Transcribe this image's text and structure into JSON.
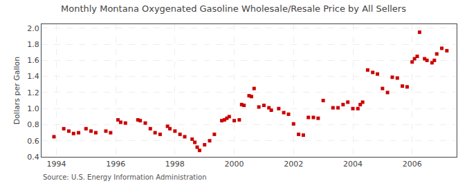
{
  "chart_data": {
    "type": "scatter",
    "title": "Monthly Montana Oxygenated Gasoline Wholesale/Resale Price by All Sellers",
    "ylabel": "Dollars per Gallon",
    "annotations": [
      "Source: U.S. Energy Information Administration"
    ],
    "color": "#CC0000",
    "marker": "square",
    "grid": true,
    "xlim": [
      1993.5,
      2007.5
    ],
    "ylim": [
      0.4,
      2.05
    ],
    "xticks": [
      1994,
      1996,
      1998,
      2000,
      2002,
      2004,
      2006
    ],
    "yticks": [
      0.4,
      0.6,
      0.8,
      {
        "value": 1.0,
        "label": "1.0"
      },
      1.2,
      1.4,
      1.6,
      1.8,
      {
        "value": 2.0,
        "label": "2.0"
      }
    ],
    "x": [
      1993.92,
      1994.25,
      1994.42,
      1994.58,
      1994.75,
      1995.0,
      1995.17,
      1995.33,
      1995.67,
      1995.83,
      1996.08,
      1996.17,
      1996.33,
      1996.75,
      1996.83,
      1997.0,
      1997.17,
      1997.33,
      1997.5,
      1997.75,
      1997.83,
      1998.0,
      1998.17,
      1998.33,
      1998.58,
      1998.67,
      1998.75,
      1998.83,
      1999.0,
      1999.17,
      1999.33,
      1999.58,
      1999.67,
      1999.75,
      1999.83,
      2000.0,
      2000.17,
      2000.25,
      2000.33,
      2000.5,
      2000.58,
      2000.67,
      2000.83,
      2001.0,
      2001.17,
      2001.25,
      2001.5,
      2001.67,
      2001.83,
      2002.0,
      2002.17,
      2002.33,
      2002.5,
      2002.67,
      2002.83,
      2003.0,
      2003.33,
      2003.5,
      2003.67,
      2003.83,
      2004.0,
      2004.17,
      2004.25,
      2004.33,
      2004.5,
      2004.67,
      2004.83,
      2005.0,
      2005.17,
      2005.33,
      2005.5,
      2005.67,
      2005.83,
      2006.0,
      2006.08,
      2006.17,
      2006.25,
      2006.42,
      2006.5,
      2006.67,
      2006.75,
      2006.83,
      2007.0,
      2007.17
    ],
    "values": [
      0.65,
      0.75,
      0.72,
      0.69,
      0.7,
      0.75,
      0.72,
      0.7,
      0.72,
      0.7,
      0.86,
      0.83,
      0.82,
      0.86,
      0.85,
      0.82,
      0.75,
      0.7,
      0.68,
      0.78,
      0.75,
      0.72,
      0.68,
      0.65,
      0.62,
      0.58,
      0.52,
      0.48,
      0.55,
      0.6,
      0.68,
      0.85,
      0.86,
      0.88,
      0.9,
      0.85,
      0.86,
      1.05,
      1.04,
      1.16,
      1.15,
      1.25,
      1.02,
      1.04,
      1.01,
      0.98,
      1.0,
      0.95,
      0.93,
      0.81,
      0.68,
      0.67,
      0.89,
      0.89,
      0.88,
      1.1,
      1.01,
      1.01,
      1.05,
      1.08,
      1.0,
      1.0,
      1.05,
      1.08,
      1.48,
      1.45,
      1.43,
      1.25,
      1.2,
      1.39,
      1.38,
      1.28,
      1.27,
      1.58,
      1.62,
      1.65,
      1.95,
      1.62,
      1.6,
      1.57,
      1.6,
      1.68,
      1.75,
      1.72
    ]
  }
}
